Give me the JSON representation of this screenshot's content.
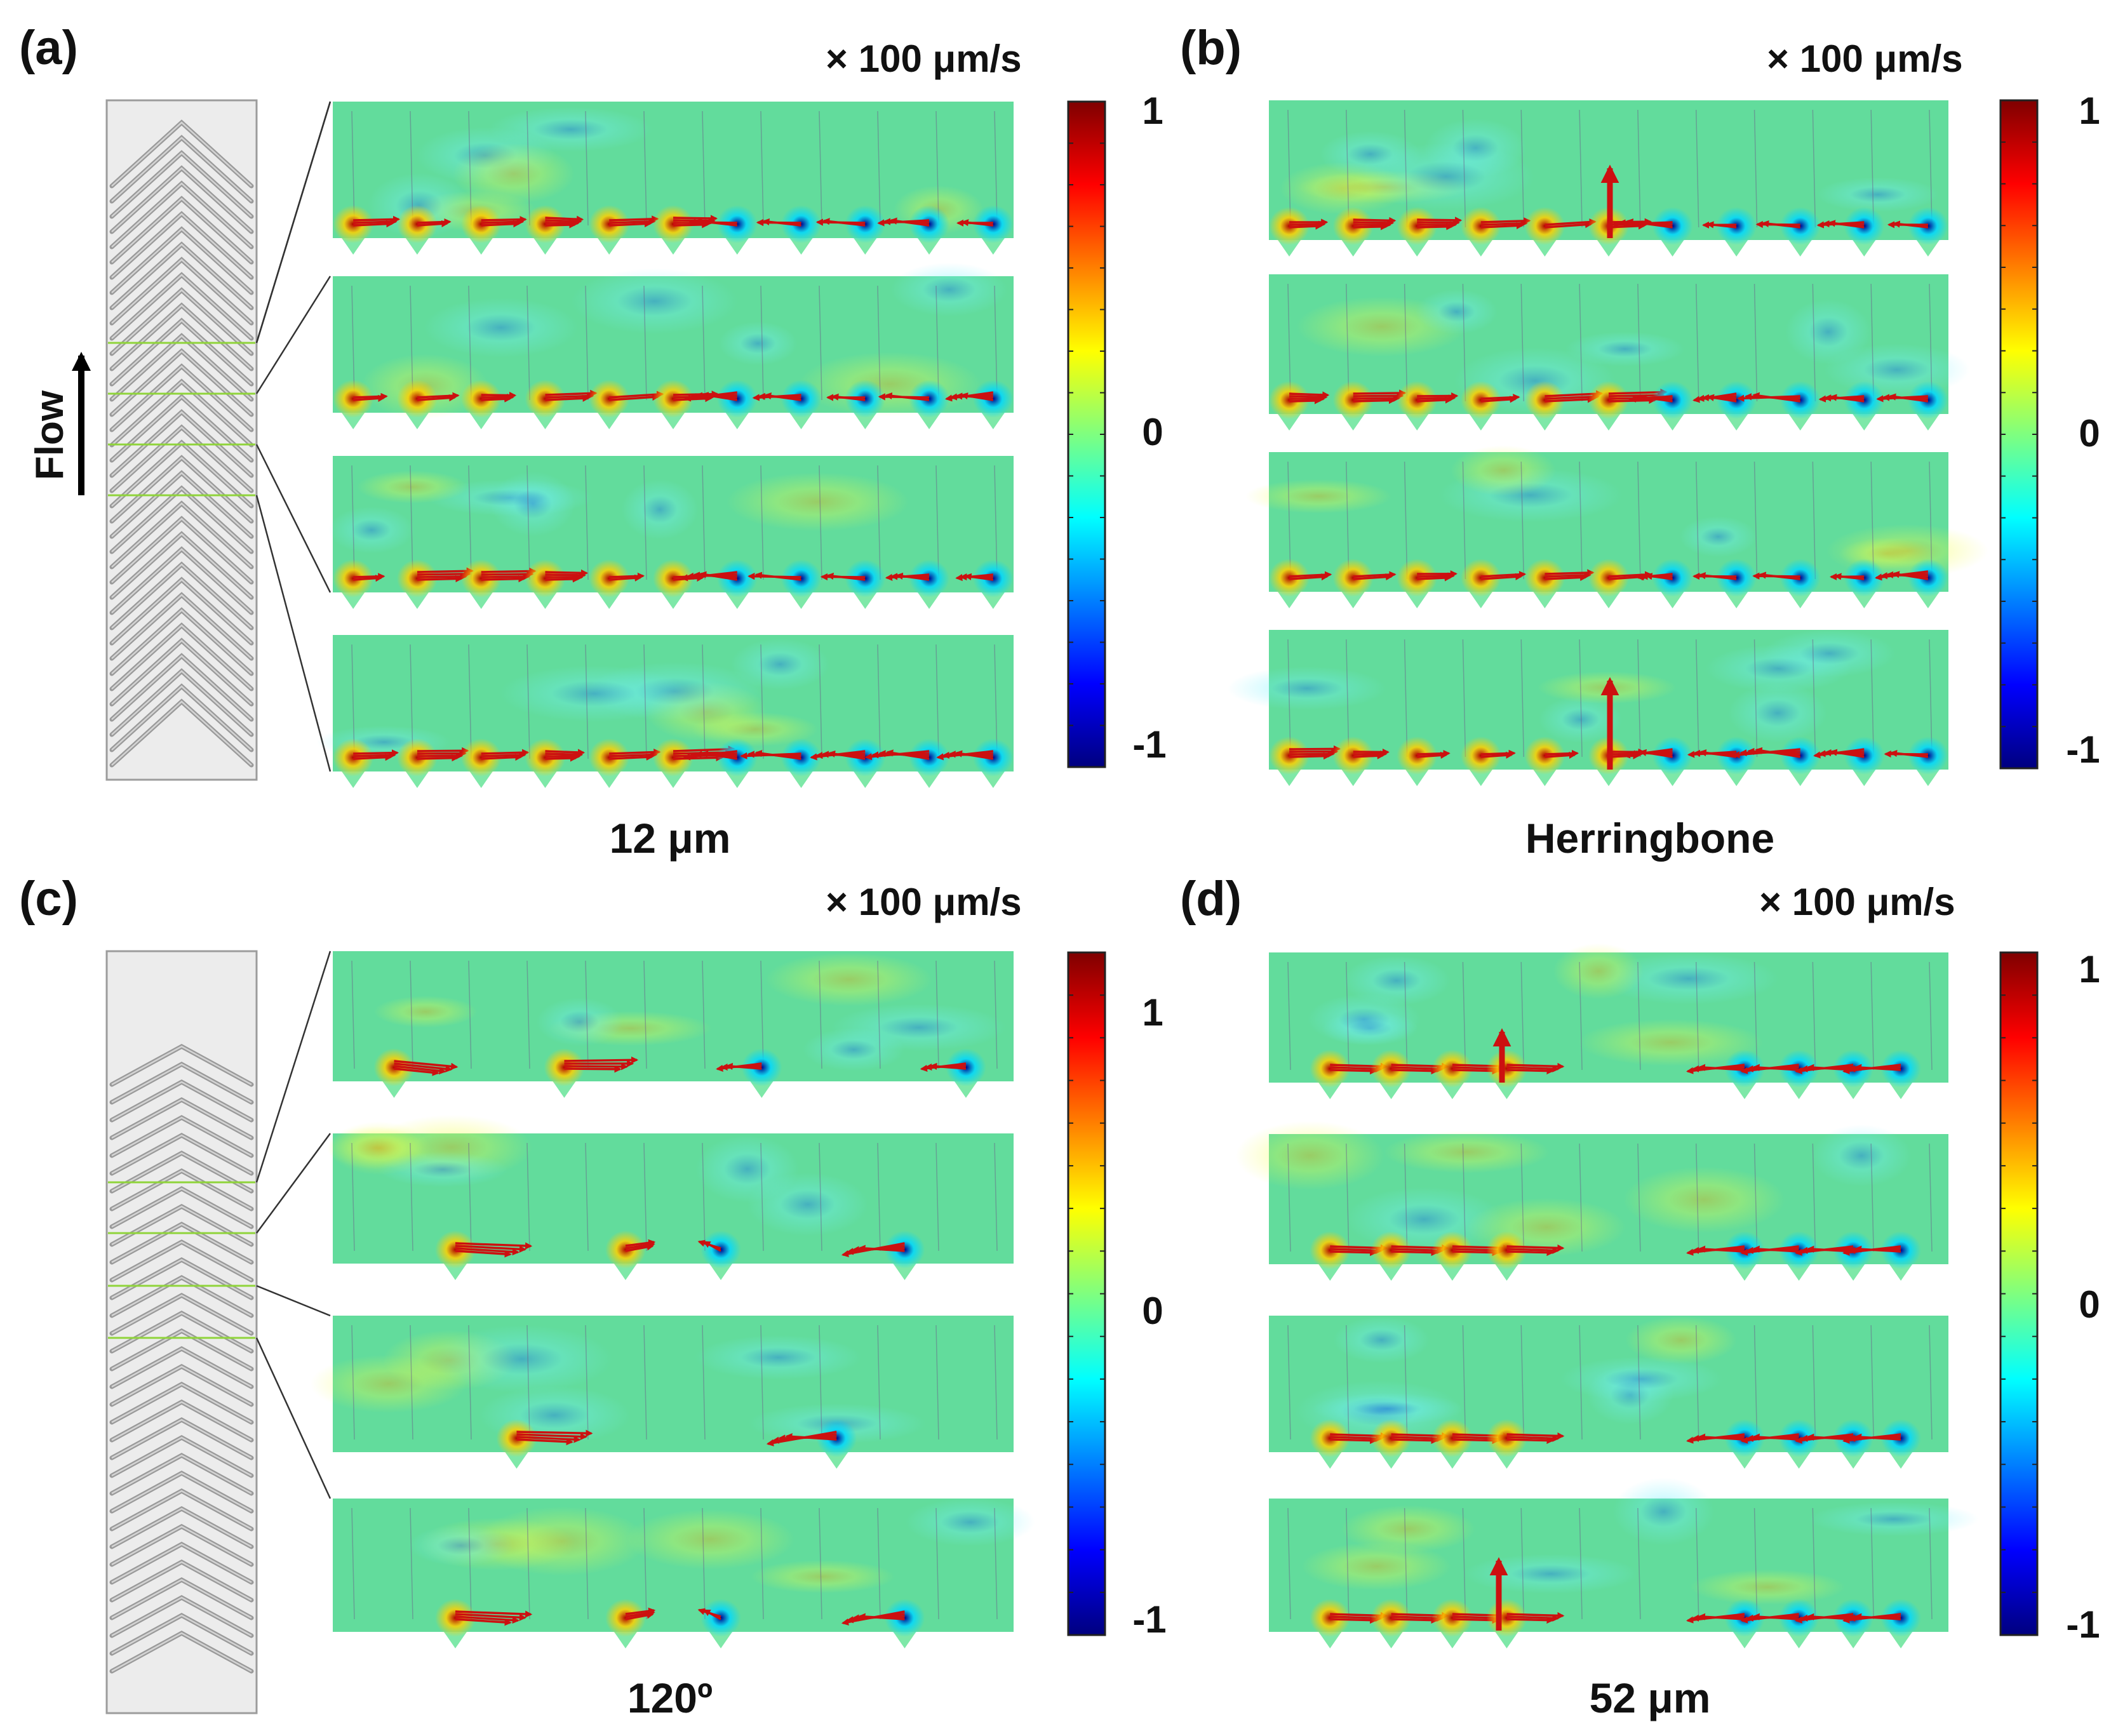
{
  "panels": [
    {
      "id": "a",
      "label": "(a)",
      "unit": "× 100 μm/s",
      "caption": "12 μm",
      "schematic": "dense",
      "ticks": [
        "1",
        "0",
        "-1"
      ]
    },
    {
      "id": "b",
      "label": "(b)",
      "unit": "× 100 μm/s",
      "caption": "Herringbone",
      "schematic": "none",
      "ticks": [
        "1",
        "0",
        "-1"
      ]
    },
    {
      "id": "c",
      "label": "(c)",
      "unit": "× 100 μm/s",
      "caption": "120º",
      "schematic": "sparse",
      "ticks": [
        "1",
        "0",
        "-1"
      ]
    },
    {
      "id": "d",
      "label": "(d)",
      "unit": "× 100 μm/s",
      "caption": "52 μm",
      "schematic": "none",
      "ticks": [
        "1",
        "0",
        "-1"
      ]
    }
  ],
  "flow_label": "Flow",
  "colormap": {
    "name": "jet",
    "min": -1,
    "max": 1,
    "stops": [
      "#00007f",
      "#0000ff",
      "#007fff",
      "#00ffff",
      "#7fff7f",
      "#ffff00",
      "#ff7f00",
      "#ff0000",
      "#7f0000"
    ]
  },
  "colors": {
    "field_bg": "#62dc9c",
    "arrow": "#cc1010",
    "schematic_bg": "#ececec",
    "groove": "#9a9a9a",
    "section_line": "#8fd43a"
  }
}
